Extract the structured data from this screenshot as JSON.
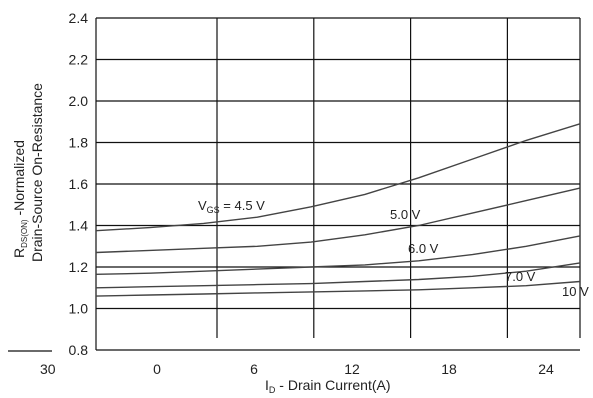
{
  "chart_data": {
    "type": "line",
    "xlabel": "I_D - Drain Current(A)",
    "xlabel_main": "I",
    "xlabel_sub": "D",
    "xlabel_rest": " - Drain Current(A)",
    "ylabel_line1_main": "R",
    "ylabel_line1_sub": "DS(ON)",
    "ylabel_line1_rest": " -Normalized",
    "ylabel_line2": "Drain-Source On-Resistance",
    "xlim": [
      0,
      27
    ],
    "ylim": [
      0.8,
      2.4
    ],
    "x_ticks": [
      0,
      6,
      12,
      18,
      24
    ],
    "y_ticks": [
      "0.8",
      "1.0",
      "1.2",
      "1.4",
      "1.6",
      "1.8",
      "2.0",
      "2.2",
      "2.4"
    ],
    "extra_tick": "30",
    "grid": true,
    "series": [
      {
        "name": "V_GS = 4.5 V",
        "label_main": "V",
        "label_sub": "GS",
        "label_rest": " = 4.5 V",
        "x": [
          0,
          3,
          6,
          9,
          12,
          15,
          18,
          21,
          24,
          27
        ],
        "y": [
          1.375,
          1.39,
          1.41,
          1.44,
          1.49,
          1.55,
          1.63,
          1.72,
          1.81,
          1.89
        ]
      },
      {
        "name": "5.0 V",
        "x": [
          0,
          3,
          6,
          9,
          12,
          15,
          18,
          21,
          24,
          27
        ],
        "y": [
          1.27,
          1.28,
          1.29,
          1.3,
          1.32,
          1.355,
          1.4,
          1.46,
          1.52,
          1.58
        ]
      },
      {
        "name": "6.0 V",
        "x": [
          0,
          3,
          6,
          9,
          12,
          15,
          18,
          21,
          24,
          27
        ],
        "y": [
          1.165,
          1.17,
          1.18,
          1.19,
          1.2,
          1.21,
          1.23,
          1.26,
          1.3,
          1.35
        ]
      },
      {
        "name": "7.0 V",
        "x": [
          0,
          3,
          6,
          9,
          12,
          15,
          18,
          21,
          24,
          27
        ],
        "y": [
          1.1,
          1.105,
          1.11,
          1.115,
          1.12,
          1.13,
          1.14,
          1.155,
          1.18,
          1.22
        ]
      },
      {
        "name": "10 V",
        "x": [
          0,
          3,
          6,
          9,
          12,
          15,
          18,
          21,
          24,
          27
        ],
        "y": [
          1.06,
          1.065,
          1.07,
          1.075,
          1.08,
          1.085,
          1.09,
          1.1,
          1.11,
          1.13
        ]
      }
    ]
  }
}
